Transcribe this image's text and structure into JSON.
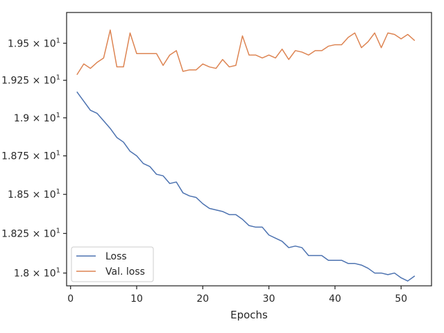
{
  "chart_data": {
    "type": "line",
    "title": "",
    "xlabel": "Epochs",
    "ylabel": "",
    "xlim": [
      -0.6,
      54.6
    ],
    "ylim": [
      17.92,
      19.71
    ],
    "yscale": "log",
    "grid": false,
    "legend_position": "lower-left",
    "x": [
      1,
      2,
      3,
      4,
      5,
      6,
      7,
      8,
      9,
      10,
      11,
      12,
      13,
      14,
      15,
      16,
      17,
      18,
      19,
      20,
      21,
      22,
      23,
      24,
      25,
      26,
      27,
      28,
      29,
      30,
      31,
      32,
      33,
      34,
      35,
      36,
      37,
      38,
      39,
      40,
      41,
      42,
      43,
      44,
      45,
      46,
      47,
      48,
      49,
      50,
      51,
      52
    ],
    "x_ticks": [
      0,
      10,
      20,
      30,
      40,
      50
    ],
    "x_tick_labels": [
      "0",
      "10",
      "20",
      "30",
      "40",
      "50"
    ],
    "y_ticks": [
      18.0,
      18.25,
      18.5,
      18.75,
      19.0,
      19.25,
      19.5
    ],
    "y_tick_labels": [
      {
        "mantissa": "1.8",
        "base": "10",
        "exp": "1"
      },
      {
        "mantissa": "1.825",
        "base": "10",
        "exp": "1"
      },
      {
        "mantissa": "1.85",
        "base": "10",
        "exp": "1"
      },
      {
        "mantissa": "1.875",
        "base": "10",
        "exp": "1"
      },
      {
        "mantissa": "1.9",
        "base": "10",
        "exp": "1"
      },
      {
        "mantissa": "1.925",
        "base": "10",
        "exp": "1"
      },
      {
        "mantissa": "1.95",
        "base": "10",
        "exp": "1"
      }
    ],
    "series": [
      {
        "name": "Loss",
        "color": "#4c72b0",
        "values": [
          19.17,
          19.11,
          19.05,
          19.03,
          18.98,
          18.93,
          18.87,
          18.84,
          18.78,
          18.75,
          18.7,
          18.68,
          18.63,
          18.62,
          18.57,
          18.58,
          18.51,
          18.49,
          18.48,
          18.44,
          18.41,
          18.4,
          18.39,
          18.37,
          18.37,
          18.34,
          18.3,
          18.29,
          18.29,
          18.24,
          18.22,
          18.2,
          18.16,
          18.17,
          18.16,
          18.11,
          18.11,
          18.11,
          18.08,
          18.08,
          18.08,
          18.06,
          18.06,
          18.05,
          18.03,
          18.0,
          18.0,
          17.99,
          18.0,
          17.97,
          17.95,
          17.98
        ]
      },
      {
        "name": "Val. loss",
        "color": "#dd8452",
        "values": [
          19.29,
          19.36,
          19.33,
          19.37,
          19.4,
          19.59,
          19.34,
          19.34,
          19.57,
          19.43,
          19.43,
          19.43,
          19.43,
          19.35,
          19.42,
          19.45,
          19.31,
          19.32,
          19.32,
          19.36,
          19.34,
          19.33,
          19.39,
          19.34,
          19.35,
          19.55,
          19.42,
          19.42,
          19.4,
          19.42,
          19.4,
          19.46,
          19.39,
          19.45,
          19.44,
          19.42,
          19.45,
          19.45,
          19.48,
          19.49,
          19.49,
          19.54,
          19.57,
          19.47,
          19.51,
          19.57,
          19.47,
          19.57,
          19.56,
          19.53,
          19.56,
          19.52
        ]
      }
    ]
  }
}
